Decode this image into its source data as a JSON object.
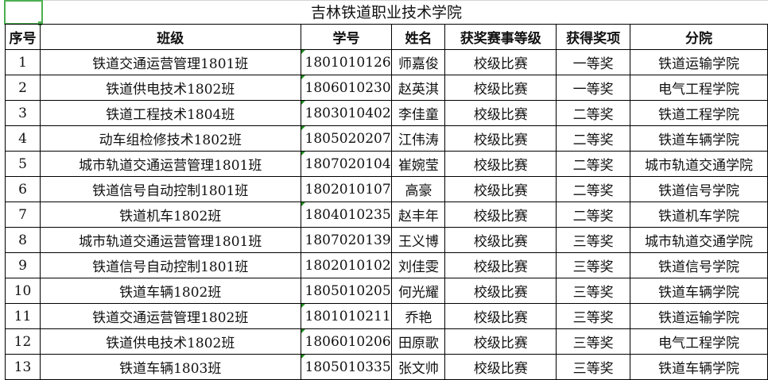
{
  "title": "吉林铁道职业技术学院",
  "headers": [
    "序号",
    "班级",
    "学号",
    "姓名",
    "获奖赛事等级",
    "获得奖项",
    "分院"
  ],
  "rows": [
    {
      "no": "1",
      "cls": "铁道交通运营管理1801班",
      "id": "1801010126",
      "name": "师嘉俊",
      "level": "校级比赛",
      "award": "一等奖",
      "dept": "铁道运输学院",
      "flag": true
    },
    {
      "no": "2",
      "cls": "铁道供电技术1802班",
      "id": "1806010230",
      "name": "赵英淇",
      "level": "校级比赛",
      "award": "一等奖",
      "dept": "电气工程学院",
      "flag": true
    },
    {
      "no": "3",
      "cls": "铁道工程技术1804班",
      "id": "1803010402",
      "name": "李佳童",
      "level": "校级比赛",
      "award": "二等奖",
      "dept": "铁道工程学院",
      "flag": true
    },
    {
      "no": "4",
      "cls": "动车组检修技术1802班",
      "id": "1805020207",
      "name": "江伟涛",
      "level": "校级比赛",
      "award": "二等奖",
      "dept": "铁道车辆学院",
      "flag": true
    },
    {
      "no": "5",
      "cls": "城市轨道交通运营管理1801班",
      "id": "1807020104",
      "name": "崔婉莹",
      "level": "校级比赛",
      "award": "二等奖",
      "dept": "城市轨道交通学院",
      "flag": true
    },
    {
      "no": "6",
      "cls": "铁道信号自动控制1801班",
      "id": "1802010107",
      "name": "高豪",
      "level": "校级比赛",
      "award": "二等奖",
      "dept": "铁道信号学院",
      "flag": false
    },
    {
      "no": "7",
      "cls": "铁道机车1802班",
      "id": "1804010235",
      "name": "赵丰年",
      "level": "校级比赛",
      "award": "二等奖",
      "dept": "铁道机车学院",
      "flag": true
    },
    {
      "no": "8",
      "cls": "城市轨道交通运营管理1801班",
      "id": "1807020139",
      "name": "王义博",
      "level": "校级比赛",
      "award": "三等奖",
      "dept": "城市轨道交通学院",
      "flag": false
    },
    {
      "no": "9",
      "cls": "铁道信号自动控制1801班",
      "id": "1802010102",
      "name": "刘佳雯",
      "level": "校级比赛",
      "award": "三等奖",
      "dept": "铁道信号学院",
      "flag": false
    },
    {
      "no": "10",
      "cls": "铁道车辆1802班",
      "id": "1805010205",
      "name": "何光耀",
      "level": "校级比赛",
      "award": "三等奖",
      "dept": "铁道车辆学院",
      "flag": false
    },
    {
      "no": "11",
      "cls": "铁道交通运营管理1802班",
      "id": "1801010211",
      "name": "乔艳",
      "level": "校级比赛",
      "award": "三等奖",
      "dept": "铁道运输学院",
      "flag": true
    },
    {
      "no": "12",
      "cls": "铁道供电技术1802班",
      "id": "1806010206",
      "name": "田原歌",
      "level": "校级比赛",
      "award": "三等奖",
      "dept": "电气工程学院",
      "flag": true
    },
    {
      "no": "13",
      "cls": "铁道车辆1803班",
      "id": "1805010335",
      "name": "张文帅",
      "level": "校级比赛",
      "award": "三等奖",
      "dept": "铁道车辆学院",
      "flag": true
    }
  ]
}
